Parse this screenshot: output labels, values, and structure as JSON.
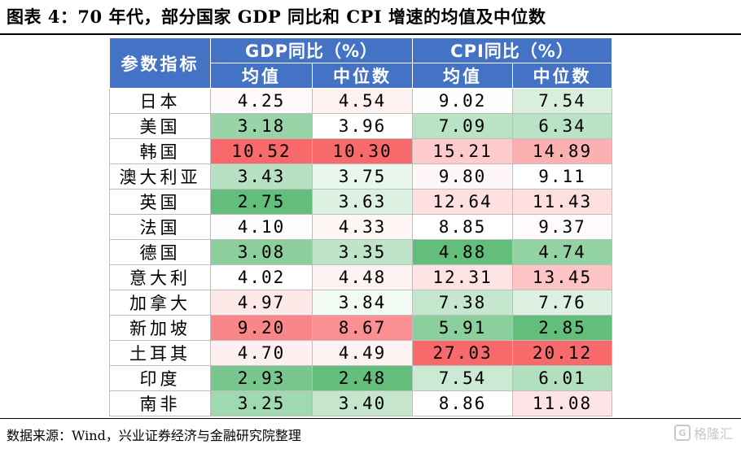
{
  "title": "图表 4：70 年代，部分国家 GDP 同比和 CPI 增速的均值及中位数",
  "header": {
    "indicator": "参数指标",
    "gdp_group": "GDP同比（%）",
    "cpi_group": "CPI同比（%）",
    "mean": "均值",
    "median": "中位数"
  },
  "rows": [
    {
      "country": "日本",
      "gdp_mean": "4.25",
      "gdp_median": "4.54",
      "cpi_mean": "9.02",
      "cpi_median": "7.54"
    },
    {
      "country": "美国",
      "gdp_mean": "3.18",
      "gdp_median": "3.96",
      "cpi_mean": "7.09",
      "cpi_median": "6.34"
    },
    {
      "country": "韩国",
      "gdp_mean": "10.52",
      "gdp_median": "10.30",
      "cpi_mean": "15.21",
      "cpi_median": "14.89"
    },
    {
      "country": "澳大利亚",
      "gdp_mean": "3.43",
      "gdp_median": "3.75",
      "cpi_mean": "9.80",
      "cpi_median": "9.11"
    },
    {
      "country": "英国",
      "gdp_mean": "2.75",
      "gdp_median": "3.63",
      "cpi_mean": "12.64",
      "cpi_median": "11.43"
    },
    {
      "country": "法国",
      "gdp_mean": "4.10",
      "gdp_median": "4.33",
      "cpi_mean": "8.85",
      "cpi_median": "9.37"
    },
    {
      "country": "德国",
      "gdp_mean": "3.08",
      "gdp_median": "3.35",
      "cpi_mean": "4.88",
      "cpi_median": "4.74"
    },
    {
      "country": "意大利",
      "gdp_mean": "4.02",
      "gdp_median": "4.48",
      "cpi_mean": "12.31",
      "cpi_median": "13.45"
    },
    {
      "country": "加拿大",
      "gdp_mean": "4.97",
      "gdp_median": "3.84",
      "cpi_mean": "7.38",
      "cpi_median": "7.76"
    },
    {
      "country": "新加坡",
      "gdp_mean": "9.20",
      "gdp_median": "8.67",
      "cpi_mean": "5.91",
      "cpi_median": "2.85"
    },
    {
      "country": "土耳其",
      "gdp_mean": "4.70",
      "gdp_median": "4.49",
      "cpi_mean": "27.03",
      "cpi_median": "20.12"
    },
    {
      "country": "印度",
      "gdp_mean": "2.93",
      "gdp_median": "2.48",
      "cpi_mean": "7.54",
      "cpi_median": "6.01"
    },
    {
      "country": "南非",
      "gdp_mean": "3.25",
      "gdp_median": "3.40",
      "cpi_mean": "8.86",
      "cpi_median": "11.08"
    }
  ],
  "colors": {
    "header_bg": "#4472c4",
    "scale_low": "#63be7b",
    "scale_mid": "#ffffff",
    "scale_high": "#f8696b"
  },
  "source": "数据来源：Wind，兴业证券经济与金融研究院整理",
  "watermark": "格隆汇"
}
